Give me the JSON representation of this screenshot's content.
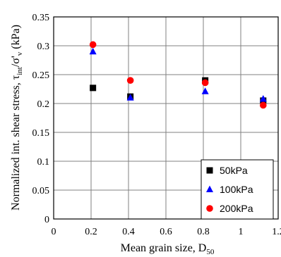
{
  "chart_data": {
    "type": "scatter",
    "xlabel": "Mean grain size, D",
    "xlabel_sub": "50",
    "ylabel_parts": {
      "main": "Normalized int. shear stress, τ",
      "sub1": "int",
      "mid": "/σ'",
      "sub2": "v",
      "end": " (kPa)"
    },
    "xlim": [
      0,
      1.2
    ],
    "ylim": [
      0,
      0.35
    ],
    "xticks": [
      0,
      0.2,
      0.4,
      0.6,
      0.8,
      1,
      1.2
    ],
    "xtick_labels": [
      "0",
      "0.2",
      "0.4",
      "0.6",
      "0.8",
      "1",
      "1.2"
    ],
    "yticks": [
      0,
      0.05,
      0.1,
      0.15,
      0.2,
      0.25,
      0.3,
      0.35
    ],
    "ytick_labels": [
      "0",
      "0.05",
      "0.1",
      "0.15",
      "0.2",
      "0.25",
      "0.3",
      "0.35"
    ],
    "grid": true,
    "legend_position": "bottom-right",
    "series": [
      {
        "name": "50kPa",
        "marker": "square",
        "color": "#000000",
        "x": [
          0.21,
          0.41,
          0.81,
          1.12
        ],
        "y": [
          0.227,
          0.212,
          0.24,
          0.205
        ]
      },
      {
        "name": "100kPa",
        "marker": "triangle",
        "color": "#0000ff",
        "x": [
          0.21,
          0.41,
          0.81,
          1.12
        ],
        "y": [
          0.29,
          0.21,
          0.221,
          0.208
        ]
      },
      {
        "name": "200kPa",
        "marker": "circle",
        "color": "#ff0000",
        "x": [
          0.21,
          0.41,
          0.81,
          1.12
        ],
        "y": [
          0.302,
          0.24,
          0.236,
          0.197
        ]
      }
    ]
  }
}
